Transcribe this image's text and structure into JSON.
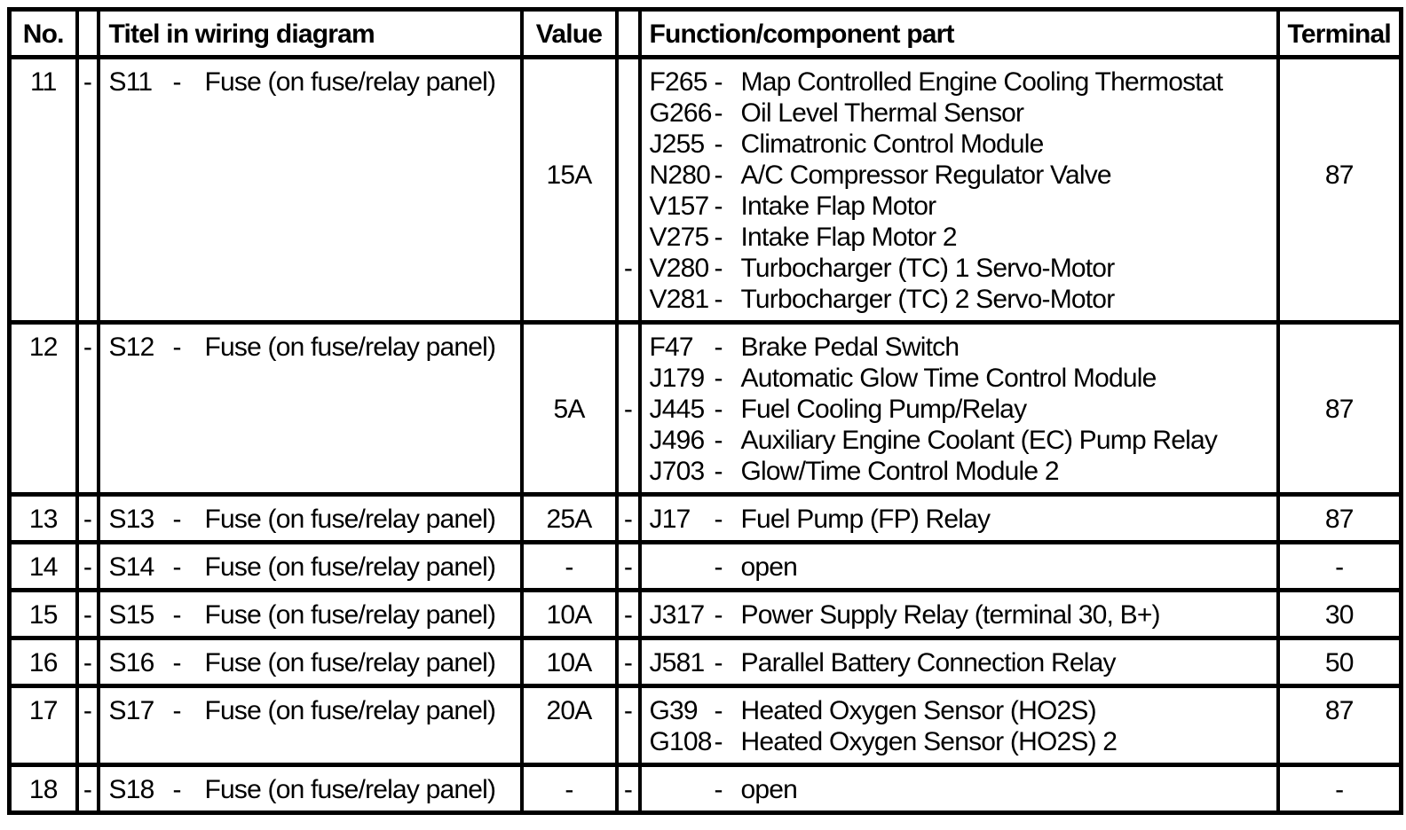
{
  "document": {
    "type": "fuse-relay-table"
  },
  "colors": {
    "text": "#000000",
    "background": "#ffffff",
    "border": "#000000"
  },
  "header": {
    "no": "No.",
    "titel": "Titel in wiring diagram",
    "value": "Value",
    "function": "Function/component part",
    "terminal": "Terminal"
  },
  "rows": [
    {
      "no": "11",
      "dash": "-",
      "code": "S11",
      "code_dash": "-",
      "title": "Fuse (on fuse/relay panel)",
      "value": "15A",
      "dash2": "-",
      "terminal": "87",
      "value_line": 4,
      "dash2_line": 7,
      "terminal_line": 4,
      "functions": [
        {
          "code": "F265",
          "dash": "-",
          "name": "Map Controlled Engine Cooling Thermostat"
        },
        {
          "code": "G266",
          "dash": "-",
          "name": "Oil Level Thermal Sensor"
        },
        {
          "code": "J255",
          "dash": "-",
          "name": "Climatronic Control Module"
        },
        {
          "code": "N280",
          "dash": "-",
          "name": "A/C Compressor Regulator Valve"
        },
        {
          "code": "V157",
          "dash": "-",
          "name": "Intake Flap Motor"
        },
        {
          "code": "V275",
          "dash": "-",
          "name": "Intake Flap Motor 2"
        },
        {
          "code": "V280",
          "dash": "-",
          "name": "Turbocharger (TC) 1 Servo-Motor"
        },
        {
          "code": "V281",
          "dash": "-",
          "name": "Turbocharger (TC) 2 Servo-Motor"
        }
      ]
    },
    {
      "no": "12",
      "dash": "-",
      "code": "S12",
      "code_dash": "-",
      "title": "Fuse (on fuse/relay panel)",
      "value": "5A",
      "dash2": "-",
      "terminal": "87",
      "value_line": 3,
      "dash2_line": 3,
      "terminal_line": 3,
      "functions": [
        {
          "code": "F47",
          "dash": "-",
          "name": "Brake Pedal Switch"
        },
        {
          "code": "J179",
          "dash": "-",
          "name": "Automatic Glow Time Control Module"
        },
        {
          "code": "J445",
          "dash": "-",
          "name": "Fuel Cooling Pump/Relay"
        },
        {
          "code": "J496",
          "dash": "-",
          "name": "Auxiliary Engine Coolant (EC) Pump Relay"
        },
        {
          "code": "J703",
          "dash": "-",
          "name": "Glow/Time Control Module 2"
        }
      ]
    },
    {
      "no": "13",
      "dash": "-",
      "code": "S13",
      "code_dash": "-",
      "title": "Fuse (on fuse/relay panel)",
      "value": "25A",
      "dash2": "-",
      "terminal": "87",
      "value_line": 1,
      "dash2_line": 1,
      "terminal_line": 1,
      "functions": [
        {
          "code": "J17",
          "dash": "-",
          "name": "Fuel Pump (FP) Relay"
        }
      ]
    },
    {
      "no": "14",
      "dash": "-",
      "code": "S14",
      "code_dash": "-",
      "title": "Fuse (on fuse/relay panel)",
      "value": "-",
      "dash2": "-",
      "terminal": "-",
      "value_line": 1,
      "dash2_line": 1,
      "terminal_line": 1,
      "functions": [
        {
          "code": "",
          "dash": "-",
          "name": "open"
        }
      ]
    },
    {
      "no": "15",
      "dash": "-",
      "code": "S15",
      "code_dash": "-",
      "title": "Fuse (on fuse/relay panel)",
      "value": "10A",
      "dash2": "-",
      "terminal": "30",
      "value_line": 1,
      "dash2_line": 1,
      "terminal_line": 1,
      "functions": [
        {
          "code": "J317",
          "dash": "-",
          "name": "Power Supply Relay (terminal 30, B+)"
        }
      ]
    },
    {
      "no": "16",
      "dash": "-",
      "code": "S16",
      "code_dash": "-",
      "title": "Fuse (on fuse/relay panel)",
      "value": "10A",
      "dash2": "-",
      "terminal": "50",
      "value_line": 1,
      "dash2_line": 1,
      "terminal_line": 1,
      "functions": [
        {
          "code": "J581",
          "dash": "-",
          "name": "Parallel Battery Connection Relay"
        }
      ]
    },
    {
      "no": "17",
      "dash": "-",
      "code": "S17",
      "code_dash": "-",
      "title": "Fuse (on fuse/relay panel)",
      "value": "20A",
      "dash2": "-",
      "terminal": "87",
      "value_line": 1,
      "dash2_line": 1,
      "terminal_line": 1,
      "functions": [
        {
          "code": "G39",
          "dash": "-",
          "name": "Heated Oxygen Sensor (HO2S)"
        },
        {
          "code": "G108",
          "dash": "-",
          "name": "Heated Oxygen Sensor (HO2S) 2"
        }
      ]
    },
    {
      "no": "18",
      "dash": "-",
      "code": "S18",
      "code_dash": "-",
      "title": "Fuse (on fuse/relay panel)",
      "value": "-",
      "dash2": "-",
      "terminal": "-",
      "value_line": 1,
      "dash2_line": 1,
      "terminal_line": 1,
      "functions": [
        {
          "code": "",
          "dash": "-",
          "name": "open"
        }
      ]
    }
  ]
}
